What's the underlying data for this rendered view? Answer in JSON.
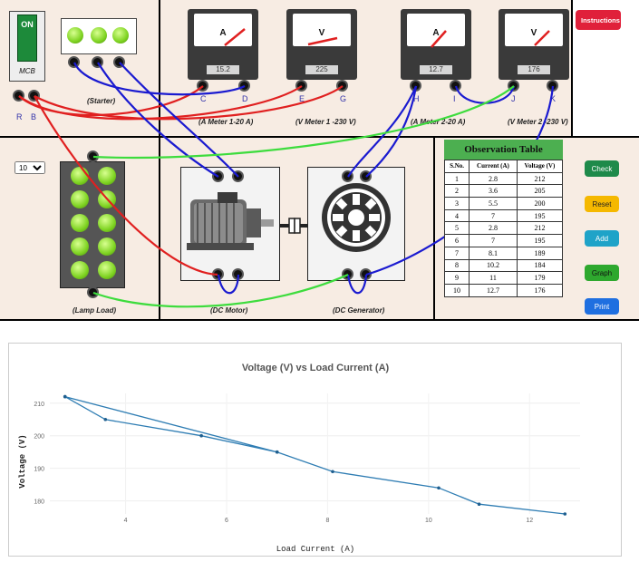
{
  "mcb": {
    "switch_label": "ON",
    "body_label": "MCB",
    "terminal_r": "R",
    "terminal_b": "B"
  },
  "starter": {
    "caption": "(Starter)"
  },
  "meters": [
    {
      "unit": "A",
      "reading": "15.2",
      "caption": "(A Meter 1-20 A)",
      "t1": "C",
      "t2": "D"
    },
    {
      "unit": "V",
      "reading": "225",
      "caption": "(V Meter 1 -230 V)",
      "t1": "E",
      "t2": "G"
    },
    {
      "unit": "A",
      "reading": "12.7",
      "caption": "(A Meter 2-20 A)",
      "t1": "H",
      "t2": "I"
    },
    {
      "unit": "V",
      "reading": "176",
      "caption": "(V Meter 2 -230 V)",
      "t1": "J",
      "t2": "K"
    }
  ],
  "load_select": {
    "value": "10"
  },
  "lamp_load": {
    "caption": "(Lamp Load)"
  },
  "dc_motor": {
    "caption": "(DC Motor)"
  },
  "dc_generator": {
    "caption": "(DC Generator)"
  },
  "buttons": {
    "instructions": "Instructions",
    "check": "Check",
    "reset": "Reset",
    "add": "Add",
    "graph": "Graph",
    "print": "Print"
  },
  "colors": {
    "panel_bg": "#f7ece3",
    "wire_red": "#e02020",
    "wire_blue": "#1a1ad0",
    "wire_green": "#3ddc3d",
    "instructions_btn": "#e0203a",
    "check_btn": "#1e8a4a",
    "reset_btn": "#f5b800",
    "add_btn": "#1fa3c8",
    "graph_btn": "#2ea82e",
    "print_btn": "#1f6fe0",
    "table_header": "#4caf50"
  },
  "observation_table": {
    "title": "Observation Table",
    "headers": [
      "S.No.",
      "Current (A)",
      "Voltage (V)"
    ],
    "rows": [
      [
        "1",
        "2.8",
        "212"
      ],
      [
        "2",
        "3.6",
        "205"
      ],
      [
        "3",
        "5.5",
        "200"
      ],
      [
        "4",
        "7",
        "195"
      ],
      [
        "5",
        "2.8",
        "212"
      ],
      [
        "6",
        "7",
        "195"
      ],
      [
        "7",
        "8.1",
        "189"
      ],
      [
        "8",
        "10.2",
        "184"
      ],
      [
        "9",
        "11",
        "179"
      ],
      [
        "10",
        "12.7",
        "176"
      ]
    ]
  },
  "chart_data": {
    "type": "line",
    "title": "Voltage (V) vs Load Current (A)",
    "xlabel": "Load Current (A)",
    "ylabel": "Voltage (V)",
    "x": [
      2.8,
      3.6,
      5.5,
      7,
      2.8,
      7,
      8.1,
      10.2,
      11,
      12.7
    ],
    "y": [
      212,
      205,
      200,
      195,
      212,
      195,
      189,
      184,
      179,
      176
    ],
    "xlim": [
      2.5,
      13
    ],
    "ylim": [
      176,
      213
    ],
    "xticks": [
      4,
      6,
      8,
      10,
      12
    ],
    "yticks": [
      180,
      190,
      200,
      210
    ],
    "grid": true,
    "line_color": "#2f7db3"
  }
}
